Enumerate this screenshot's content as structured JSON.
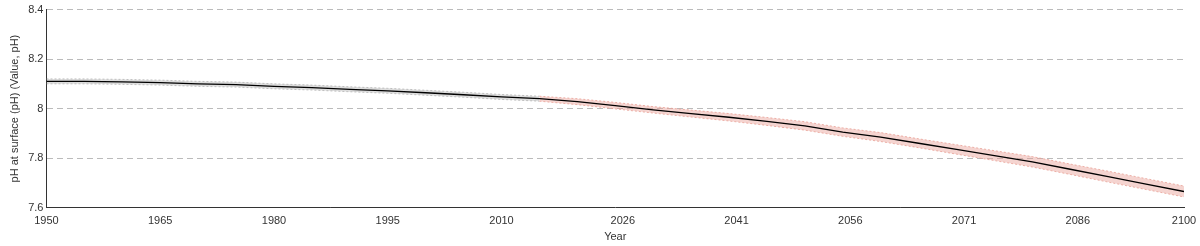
{
  "chart_data": {
    "type": "line",
    "x_label": "Year",
    "y_label": "pH at surface (pH) (Value, pH)",
    "x": [
      1950,
      1955,
      1960,
      1965,
      1970,
      1975,
      1980,
      1985,
      1990,
      1995,
      2000,
      2005,
      2010,
      2015,
      2020,
      2025,
      2030,
      2035,
      2040,
      2045,
      2050,
      2055,
      2060,
      2065,
      2070,
      2075,
      2080,
      2085,
      2090,
      2095,
      2100
    ],
    "series": [
      {
        "color": "#000000",
        "line_style": "solid",
        "values": [
          8.11,
          8.11,
          8.108,
          8.105,
          8.1,
          8.097,
          8.09,
          8.085,
          8.078,
          8.072,
          8.064,
          8.056,
          8.047,
          8.04,
          8.028,
          8.012,
          7.995,
          7.98,
          7.965,
          7.948,
          7.93,
          7.905,
          7.885,
          7.86,
          7.835,
          7.81,
          7.785,
          7.755,
          7.725,
          7.695,
          7.665
        ]
      }
    ],
    "bands": [
      {
        "color": "#b4b4b4",
        "line_style": "dotted",
        "lower": [
          8.1,
          8.1,
          8.098,
          8.095,
          8.09,
          8.087,
          8.08,
          8.075,
          8.068,
          8.062,
          8.054,
          8.046,
          8.037,
          8.03,
          null,
          null,
          null,
          null,
          null,
          null,
          null,
          null,
          null,
          null,
          null,
          null,
          null,
          null,
          null,
          null,
          null
        ],
        "upper": [
          8.12,
          8.12,
          8.118,
          8.115,
          8.11,
          8.107,
          8.1,
          8.095,
          8.088,
          8.082,
          8.074,
          8.066,
          8.057,
          8.05,
          null,
          null,
          null,
          null,
          null,
          null,
          null,
          null,
          null,
          null,
          null,
          null,
          null,
          null,
          null,
          null,
          null
        ]
      },
      {
        "color": "#e8a096",
        "line_style": "dotted",
        "lower": [
          null,
          null,
          null,
          null,
          null,
          null,
          null,
          null,
          null,
          null,
          null,
          null,
          null,
          8.03,
          8.016,
          7.999,
          7.982,
          7.966,
          7.95,
          7.932,
          7.913,
          7.888,
          7.867,
          7.842,
          7.816,
          7.79,
          7.764,
          7.734,
          7.703,
          7.673,
          7.643
        ],
        "upper": [
          null,
          null,
          null,
          null,
          null,
          null,
          null,
          null,
          null,
          null,
          null,
          null,
          null,
          8.05,
          8.04,
          8.025,
          8.008,
          7.994,
          7.98,
          7.964,
          7.947,
          7.922,
          7.903,
          7.878,
          7.854,
          7.83,
          7.806,
          7.776,
          7.747,
          7.717,
          7.687
        ]
      }
    ],
    "xlim": [
      1950,
      2100
    ],
    "xticks": [
      1950,
      1965,
      1980,
      1995,
      2010,
      2026,
      2041,
      2056,
      2071,
      2086,
      2100
    ],
    "ylim": [
      7.6,
      8.4
    ],
    "yticks": [
      7.6,
      7.8,
      8,
      8.2,
      8.4
    ],
    "grid": "y"
  }
}
